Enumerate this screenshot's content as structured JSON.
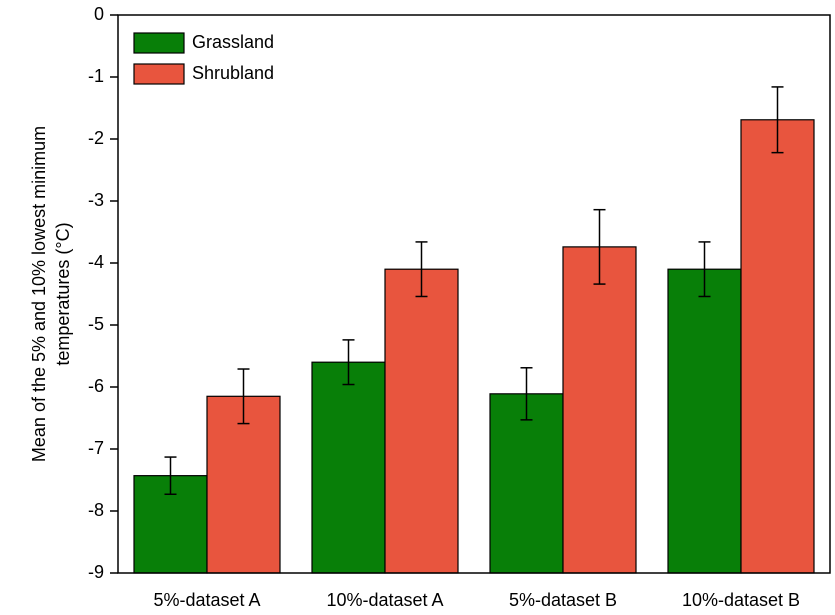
{
  "chart_data": {
    "type": "bar",
    "y_label": [
      "Mean of the 5% and 10% lowest minimum",
      "temperatures (°C)"
    ],
    "categories": [
      "5%-dataset A",
      "10%-dataset A",
      "5%-dataset B",
      "10%-dataset B"
    ],
    "series": [
      {
        "name": "Grassland",
        "color": "#087f08",
        "values": [
          -7.43,
          -5.6,
          -6.11,
          -4.1
        ],
        "errors": [
          0.3,
          0.36,
          0.42,
          0.44
        ]
      },
      {
        "name": "Shrubland",
        "color": "#e8553e",
        "values": [
          -6.15,
          -4.1,
          -3.74,
          -1.69
        ],
        "errors": [
          0.44,
          0.44,
          0.6,
          0.53
        ]
      }
    ],
    "ylim": [
      -9,
      0
    ],
    "yticks": [
      0,
      -1,
      -2,
      -3,
      -4,
      -5,
      -6,
      -7,
      -8,
      -9
    ],
    "legend": "upper-left"
  }
}
